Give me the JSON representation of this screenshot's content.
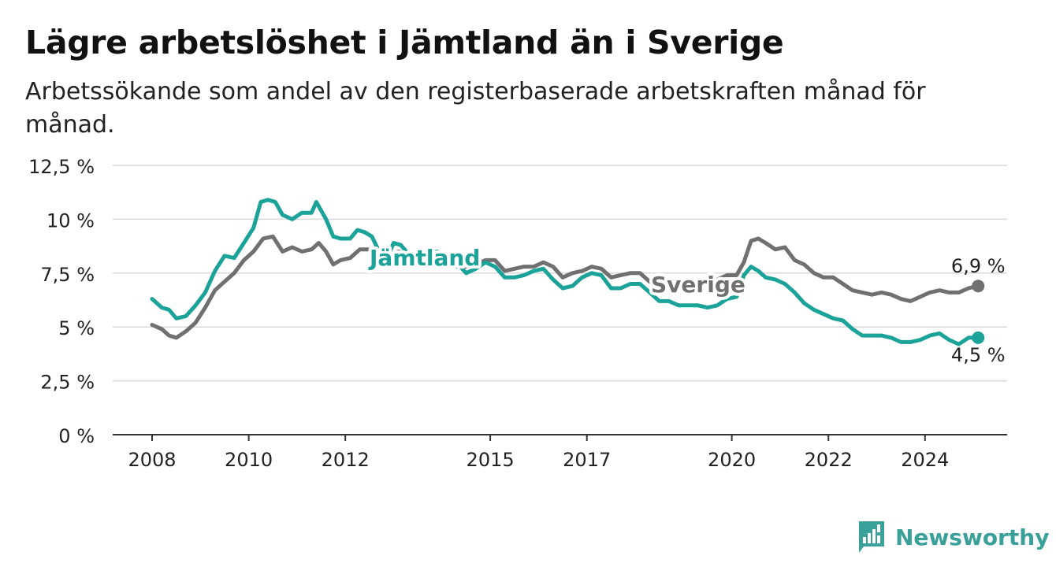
{
  "header": {
    "title": "Lägre arbetslöshet i Jämtland än i Sverige",
    "subtitle": "Arbetssökande som andel av den registerbaserade arbetskraften månad för månad."
  },
  "brand": {
    "name": "Newsworthy",
    "color": "#3aa09a"
  },
  "chart_data": {
    "type": "line",
    "title": "Lägre arbetslöshet i Jämtland än i Sverige",
    "subtitle": "Arbetssökande som andel av den registerbaserade arbetskraften månad för månad.",
    "xlim": [
      2008,
      2025.75
    ],
    "ylim": [
      0,
      12.5
    ],
    "yticks": [
      0,
      2.5,
      5,
      7.5,
      10,
      12.5
    ],
    "ytick_labels": [
      "0 %",
      "2,5 %",
      "5 %",
      "7,5 %",
      "10 %",
      "12,5 %"
    ],
    "xticks": [
      2008,
      2010,
      2012,
      2015,
      2017,
      2020,
      2022,
      2024
    ],
    "xtick_labels": [
      "2008",
      "2010",
      "2012",
      "2015",
      "2017",
      "2020",
      "2022",
      "2024"
    ],
    "grid": true,
    "legend": "direct labels on lines",
    "series": [
      {
        "name": "Jämtland",
        "color": "#1ba39a",
        "end_label": "4,5 %",
        "points": [
          [
            2008.0,
            6.3
          ],
          [
            2008.2,
            5.9
          ],
          [
            2008.35,
            5.8
          ],
          [
            2008.5,
            5.4
          ],
          [
            2008.7,
            5.5
          ],
          [
            2008.9,
            6.0
          ],
          [
            2009.1,
            6.6
          ],
          [
            2009.3,
            7.6
          ],
          [
            2009.5,
            8.3
          ],
          [
            2009.7,
            8.2
          ],
          [
            2009.9,
            8.9
          ],
          [
            2010.1,
            9.6
          ],
          [
            2010.25,
            10.8
          ],
          [
            2010.4,
            10.9
          ],
          [
            2010.55,
            10.8
          ],
          [
            2010.7,
            10.2
          ],
          [
            2010.9,
            10.0
          ],
          [
            2011.1,
            10.3
          ],
          [
            2011.3,
            10.3
          ],
          [
            2011.4,
            10.8
          ],
          [
            2011.6,
            10.0
          ],
          [
            2011.75,
            9.2
          ],
          [
            2011.9,
            9.1
          ],
          [
            2012.1,
            9.1
          ],
          [
            2012.25,
            9.5
          ],
          [
            2012.4,
            9.4
          ],
          [
            2012.55,
            9.2
          ],
          [
            2012.7,
            8.5
          ],
          [
            2012.85,
            8.1
          ],
          [
            2013.0,
            8.9
          ],
          [
            2013.15,
            8.8
          ],
          [
            2013.3,
            8.4
          ],
          [
            2013.5,
            8.0
          ],
          [
            2013.7,
            8.3
          ],
          [
            2013.9,
            8.5
          ],
          [
            2014.1,
            8.3
          ],
          [
            2014.3,
            8.0
          ],
          [
            2014.5,
            7.5
          ],
          [
            2014.7,
            7.7
          ],
          [
            2014.9,
            8.0
          ],
          [
            2015.1,
            7.8
          ],
          [
            2015.3,
            7.3
          ],
          [
            2015.5,
            7.3
          ],
          [
            2015.7,
            7.4
          ],
          [
            2015.9,
            7.6
          ],
          [
            2016.1,
            7.7
          ],
          [
            2016.3,
            7.2
          ],
          [
            2016.5,
            6.8
          ],
          [
            2016.7,
            6.9
          ],
          [
            2016.9,
            7.3
          ],
          [
            2017.1,
            7.5
          ],
          [
            2017.3,
            7.4
          ],
          [
            2017.5,
            6.8
          ],
          [
            2017.7,
            6.8
          ],
          [
            2017.9,
            7.0
          ],
          [
            2018.1,
            7.0
          ],
          [
            2018.3,
            6.6
          ],
          [
            2018.5,
            6.2
          ],
          [
            2018.7,
            6.2
          ],
          [
            2018.9,
            6.0
          ],
          [
            2019.1,
            6.0
          ],
          [
            2019.3,
            6.0
          ],
          [
            2019.5,
            5.9
          ],
          [
            2019.7,
            6.0
          ],
          [
            2019.9,
            6.3
          ],
          [
            2020.1,
            6.4
          ],
          [
            2020.25,
            7.4
          ],
          [
            2020.4,
            7.8
          ],
          [
            2020.55,
            7.6
          ],
          [
            2020.7,
            7.3
          ],
          [
            2020.9,
            7.2
          ],
          [
            2021.1,
            7.0
          ],
          [
            2021.3,
            6.6
          ],
          [
            2021.5,
            6.1
          ],
          [
            2021.7,
            5.8
          ],
          [
            2021.9,
            5.6
          ],
          [
            2022.1,
            5.4
          ],
          [
            2022.3,
            5.3
          ],
          [
            2022.5,
            4.9
          ],
          [
            2022.7,
            4.6
          ],
          [
            2022.9,
            4.6
          ],
          [
            2023.1,
            4.6
          ],
          [
            2023.3,
            4.5
          ],
          [
            2023.5,
            4.3
          ],
          [
            2023.7,
            4.3
          ],
          [
            2023.9,
            4.4
          ],
          [
            2024.1,
            4.6
          ],
          [
            2024.3,
            4.7
          ],
          [
            2024.5,
            4.4
          ],
          [
            2024.7,
            4.2
          ],
          [
            2024.9,
            4.5
          ],
          [
            2025.1,
            4.5
          ]
        ]
      },
      {
        "name": "Sverige",
        "color": "#707070",
        "end_label": "6,9 %",
        "points": [
          [
            2008.0,
            5.1
          ],
          [
            2008.2,
            4.9
          ],
          [
            2008.35,
            4.6
          ],
          [
            2008.5,
            4.5
          ],
          [
            2008.7,
            4.8
          ],
          [
            2008.9,
            5.2
          ],
          [
            2009.1,
            5.9
          ],
          [
            2009.3,
            6.7
          ],
          [
            2009.5,
            7.1
          ],
          [
            2009.7,
            7.5
          ],
          [
            2009.9,
            8.1
          ],
          [
            2010.1,
            8.5
          ],
          [
            2010.3,
            9.1
          ],
          [
            2010.5,
            9.2
          ],
          [
            2010.7,
            8.5
          ],
          [
            2010.9,
            8.7
          ],
          [
            2011.1,
            8.5
          ],
          [
            2011.3,
            8.6
          ],
          [
            2011.45,
            8.9
          ],
          [
            2011.6,
            8.5
          ],
          [
            2011.75,
            7.9
          ],
          [
            2011.9,
            8.1
          ],
          [
            2012.1,
            8.2
          ],
          [
            2012.3,
            8.6
          ],
          [
            2012.5,
            8.6
          ],
          [
            2012.7,
            8.2
          ],
          [
            2012.9,
            8.3
          ],
          [
            2013.1,
            8.5
          ],
          [
            2013.3,
            8.4
          ],
          [
            2013.5,
            8.3
          ],
          [
            2013.7,
            8.0
          ],
          [
            2013.9,
            8.3
          ],
          [
            2014.1,
            8.1
          ],
          [
            2014.3,
            7.8
          ],
          [
            2014.5,
            7.8
          ],
          [
            2014.7,
            7.9
          ],
          [
            2014.9,
            8.1
          ],
          [
            2015.1,
            8.1
          ],
          [
            2015.3,
            7.6
          ],
          [
            2015.5,
            7.7
          ],
          [
            2015.7,
            7.8
          ],
          [
            2015.9,
            7.8
          ],
          [
            2016.1,
            8.0
          ],
          [
            2016.3,
            7.8
          ],
          [
            2016.5,
            7.3
          ],
          [
            2016.7,
            7.5
          ],
          [
            2016.9,
            7.6
          ],
          [
            2017.1,
            7.8
          ],
          [
            2017.3,
            7.7
          ],
          [
            2017.5,
            7.3
          ],
          [
            2017.7,
            7.4
          ],
          [
            2017.9,
            7.5
          ],
          [
            2018.1,
            7.5
          ],
          [
            2018.3,
            7.1
          ],
          [
            2018.5,
            7.0
          ],
          [
            2018.7,
            6.9
          ],
          [
            2018.9,
            6.8
          ],
          [
            2019.1,
            6.9
          ],
          [
            2019.3,
            7.0
          ],
          [
            2019.5,
            7.0
          ],
          [
            2019.7,
            7.2
          ],
          [
            2019.9,
            7.4
          ],
          [
            2020.1,
            7.4
          ],
          [
            2020.25,
            8.0
          ],
          [
            2020.4,
            9.0
          ],
          [
            2020.55,
            9.1
          ],
          [
            2020.7,
            8.9
          ],
          [
            2020.9,
            8.6
          ],
          [
            2021.1,
            8.7
          ],
          [
            2021.3,
            8.1
          ],
          [
            2021.5,
            7.9
          ],
          [
            2021.7,
            7.5
          ],
          [
            2021.9,
            7.3
          ],
          [
            2022.1,
            7.3
          ],
          [
            2022.3,
            7.0
          ],
          [
            2022.5,
            6.7
          ],
          [
            2022.7,
            6.6
          ],
          [
            2022.9,
            6.5
          ],
          [
            2023.1,
            6.6
          ],
          [
            2023.3,
            6.5
          ],
          [
            2023.5,
            6.3
          ],
          [
            2023.7,
            6.2
          ],
          [
            2023.9,
            6.4
          ],
          [
            2024.1,
            6.6
          ],
          [
            2024.3,
            6.7
          ],
          [
            2024.5,
            6.6
          ],
          [
            2024.7,
            6.6
          ],
          [
            2024.9,
            6.8
          ],
          [
            2025.1,
            6.9
          ]
        ]
      }
    ]
  }
}
